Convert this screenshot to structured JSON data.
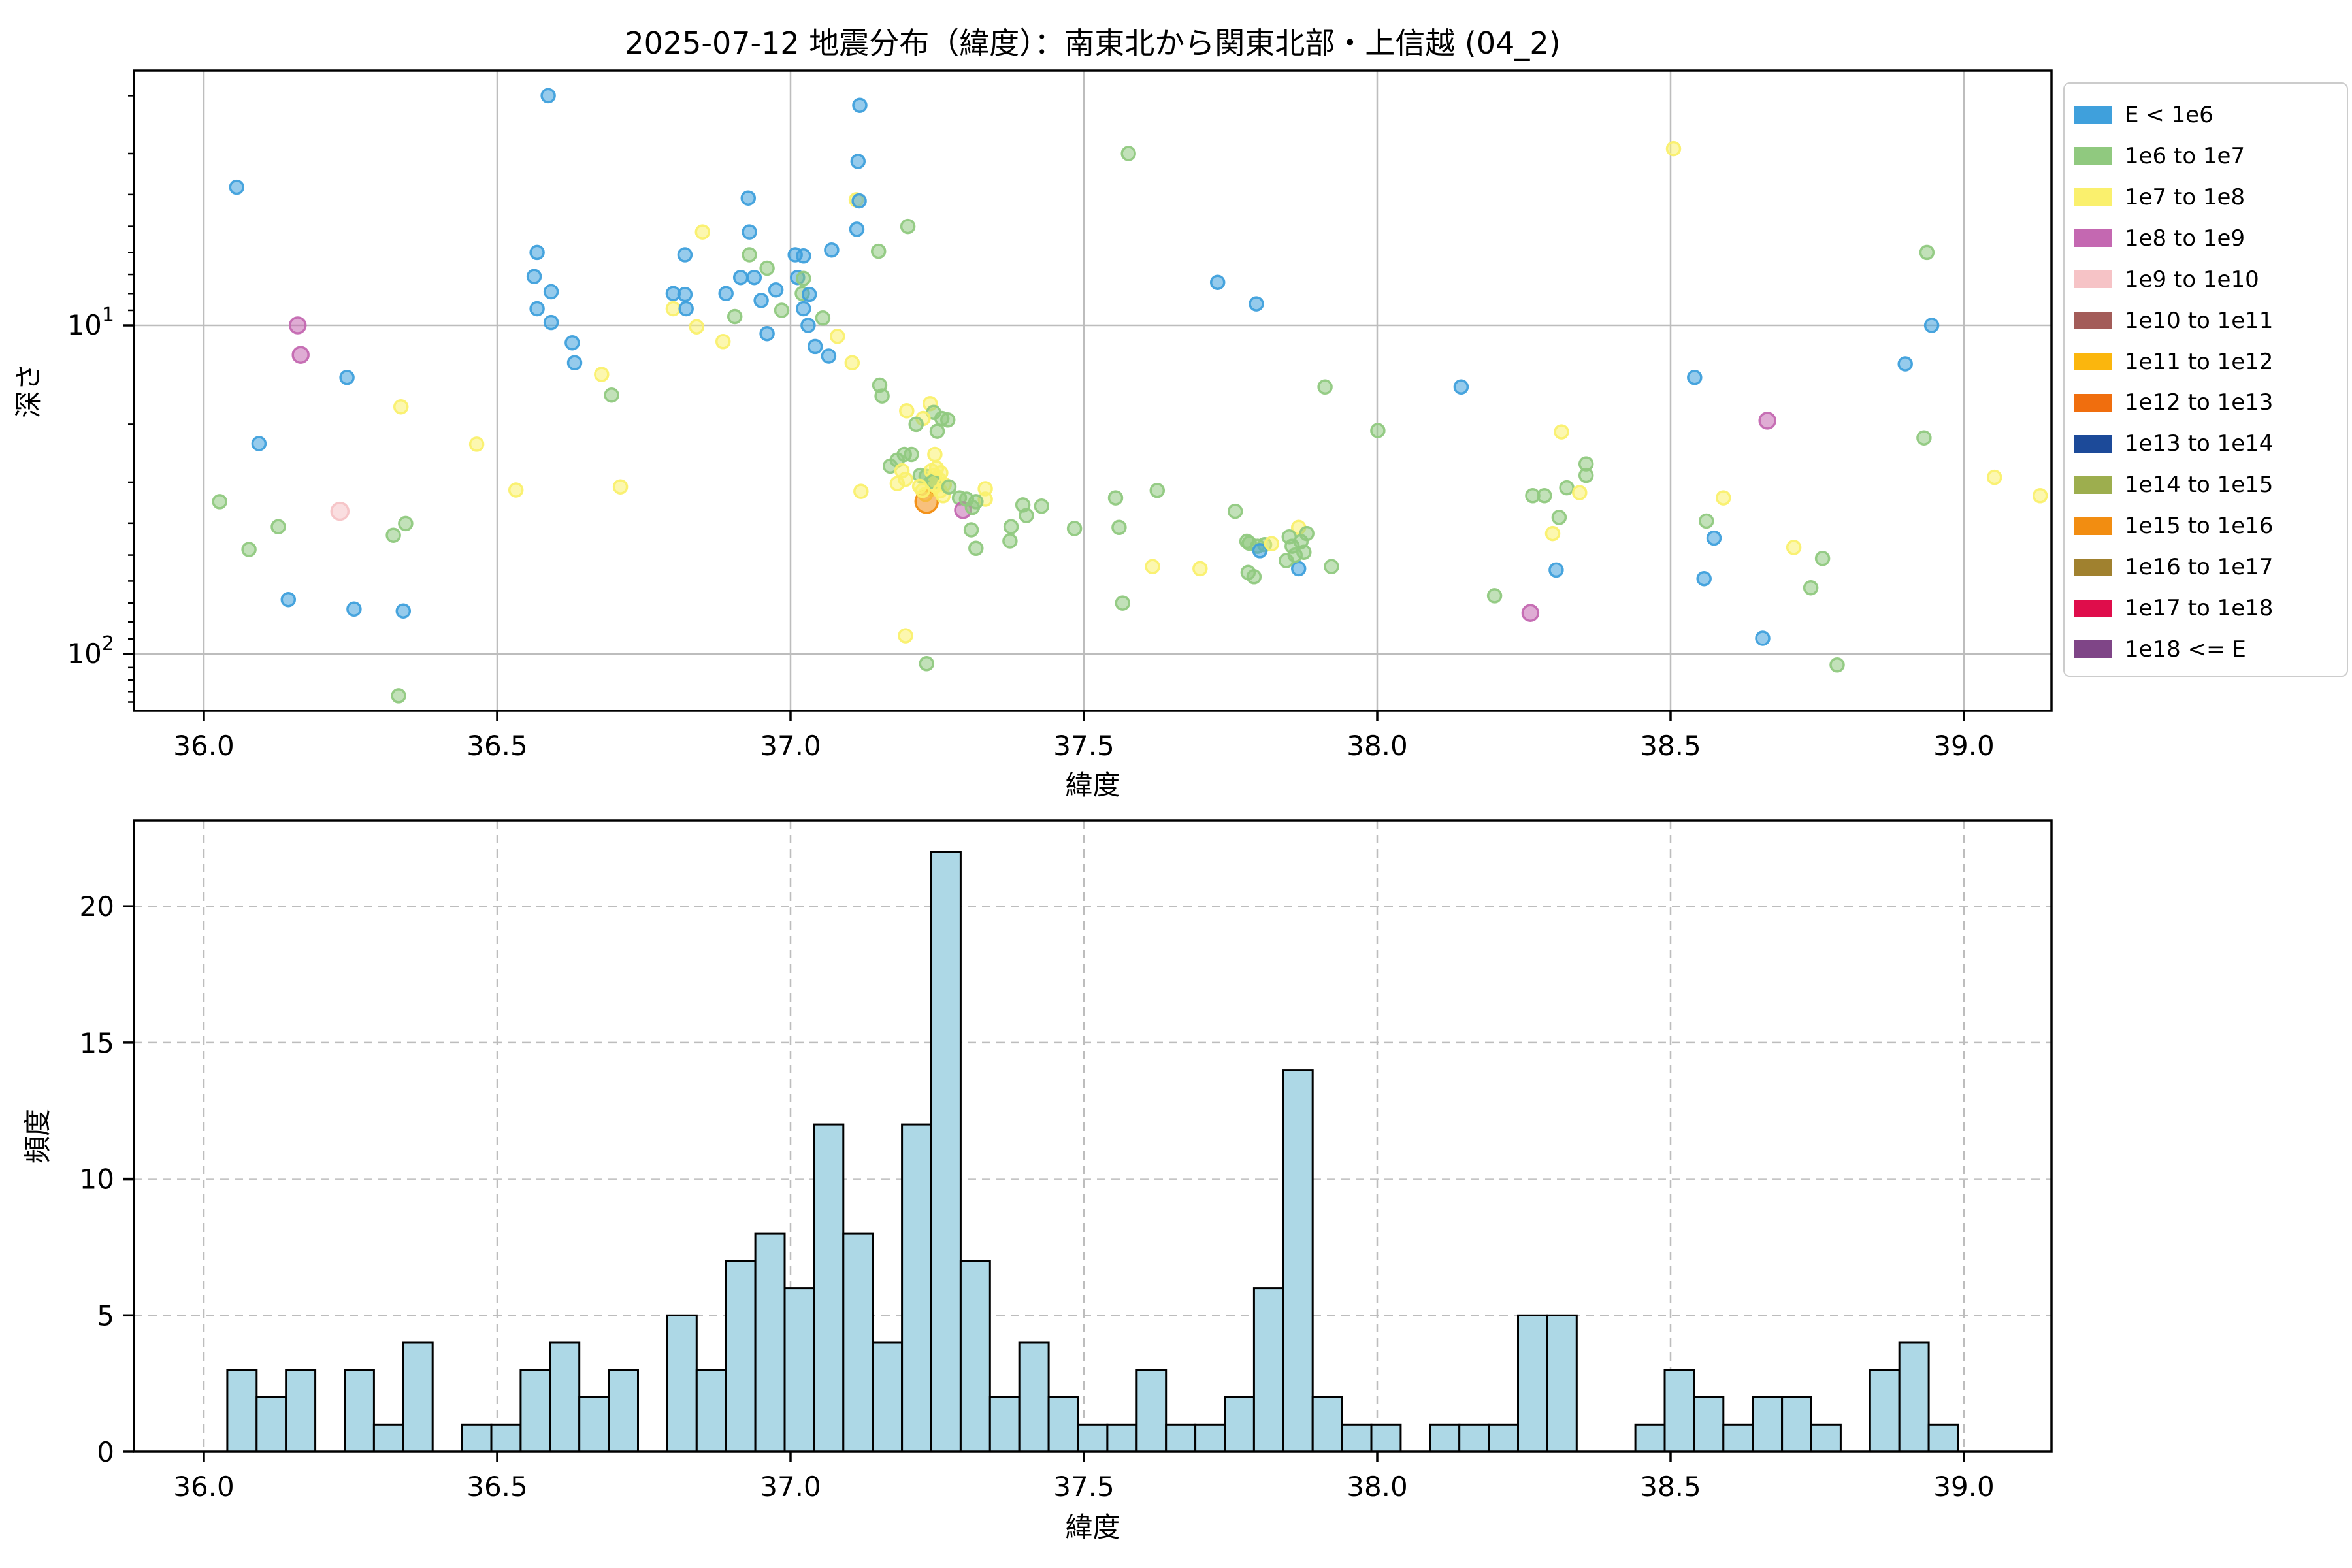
{
  "title": "2025-07-12 地震分布（緯度）：南東北から関東北部・上信越 (04_2)",
  "legend": {
    "entries": [
      {
        "label": "E < 1e6",
        "color": "#3FA0DC"
      },
      {
        "label": "1e6 to 1e7",
        "color": "#90C97F"
      },
      {
        "label": "1e7 to 1e8",
        "color": "#FAF06D"
      },
      {
        "label": "1e8 to 1e9",
        "color": "#C468B1"
      },
      {
        "label": "1e9 to 1e10",
        "color": "#F6C3C6"
      },
      {
        "label": "1e10 to 1e11",
        "color": "#A35C59"
      },
      {
        "label": "1e11 to 1e12",
        "color": "#FBB60D"
      },
      {
        "label": "1e12 to 1e13",
        "color": "#F06E0E"
      },
      {
        "label": "1e13 to 1e14",
        "color": "#1C4A99"
      },
      {
        "label": "1e14 to 1e15",
        "color": "#9DAE4E"
      },
      {
        "label": "1e15 to 1e16",
        "color": "#F28D11"
      },
      {
        "label": "1e16 to 1e17",
        "color": "#A0812F"
      },
      {
        "label": "1e17 to 1e18",
        "color": "#DF0D4B"
      },
      {
        "label": "1e18 <= E",
        "color": "#7F4587"
      }
    ]
  },
  "chart_data": [
    {
      "type": "scatter",
      "title": "",
      "xlabel": "緯度",
      "ylabel": "深さ",
      "x_ticks": [
        36.0,
        36.5,
        37.0,
        37.5,
        38.0,
        38.5,
        39.0
      ],
      "x_tick_labels": [
        "36.0",
        "36.5",
        "37.0",
        "37.5",
        "38.0",
        "38.5",
        "39.0"
      ],
      "xlim": [
        35.881,
        39.15
      ],
      "y_scale": "log-inverted",
      "ylim_depth": [
        1.66,
        148
      ],
      "y_major_ticks": [
        10,
        100
      ],
      "y_tick_labels": [
        {
          "base": "10",
          "exp": "1"
        },
        {
          "base": "10",
          "exp": "2"
        }
      ],
      "y_minor_ticks": [
        2,
        3,
        4,
        5,
        6,
        7,
        8,
        9,
        20,
        30,
        40,
        50,
        60,
        70,
        80,
        90,
        110,
        120,
        130,
        140
      ],
      "grid": "solid",
      "point_classes": {
        "b": {
          "label": "E < 1e6",
          "color": "#3FA0DC",
          "r": 10
        },
        "g": {
          "label": "1e6 to 1e7",
          "color": "#90C97F",
          "r": 10
        },
        "y": {
          "label": "1e7 to 1e8",
          "color": "#FAF06D",
          "r": 10
        },
        "m": {
          "label": "1e8 to 1e9",
          "color": "#C468B1",
          "r": 12
        },
        "p": {
          "label": "1e9 to 1e10",
          "color": "#F6C3C6",
          "r": 13
        },
        "o": {
          "label": "1e15 to 1e16",
          "color": "#F28D11",
          "r": 17
        }
      },
      "points": [
        [
          36.056,
          3.8,
          "b"
        ],
        [
          36.094,
          22.9,
          "b"
        ],
        [
          36.027,
          34.4,
          "g"
        ],
        [
          36.077,
          48.1,
          "g"
        ],
        [
          36.127,
          41.0,
          "g"
        ],
        [
          36.144,
          68.3,
          "b"
        ],
        [
          36.16,
          10.0,
          "m"
        ],
        [
          36.165,
          12.3,
          "m"
        ],
        [
          36.232,
          36.8,
          "p"
        ],
        [
          36.244,
          14.4,
          "b"
        ],
        [
          36.256,
          73.0,
          "b"
        ],
        [
          36.323,
          43.5,
          "g"
        ],
        [
          36.344,
          40.1,
          "g"
        ],
        [
          36.336,
          17.7,
          "y"
        ],
        [
          36.34,
          74.0,
          "b"
        ],
        [
          36.332,
          134,
          "g"
        ],
        [
          36.465,
          23.0,
          "y"
        ],
        [
          36.532,
          31.7,
          "y"
        ],
        [
          36.587,
          2.0,
          "b"
        ],
        [
          36.563,
          7.1,
          "b"
        ],
        [
          36.568,
          6.0,
          "b"
        ],
        [
          36.568,
          8.9,
          "b"
        ],
        [
          36.592,
          7.9,
          "b"
        ],
        [
          36.592,
          9.8,
          "b"
        ],
        [
          36.628,
          11.3,
          "b"
        ],
        [
          36.632,
          13.0,
          "b"
        ],
        [
          36.678,
          14.1,
          "y"
        ],
        [
          36.695,
          16.3,
          "g"
        ],
        [
          36.71,
          31.0,
          "y"
        ],
        [
          36.82,
          6.1,
          "b"
        ],
        [
          36.85,
          5.2,
          "y"
        ],
        [
          36.928,
          4.1,
          "b"
        ],
        [
          36.93,
          5.2,
          "b"
        ],
        [
          36.93,
          6.1,
          "g"
        ],
        [
          36.915,
          7.15,
          "b"
        ],
        [
          36.938,
          7.15,
          "b"
        ],
        [
          36.89,
          8.0,
          "b"
        ],
        [
          36.8,
          8.0,
          "b"
        ],
        [
          36.82,
          8.05,
          "b"
        ],
        [
          36.8,
          8.9,
          "y"
        ],
        [
          36.822,
          8.9,
          "b"
        ],
        [
          36.84,
          10.1,
          "y"
        ],
        [
          36.905,
          9.4,
          "g"
        ],
        [
          36.95,
          8.4,
          "b"
        ],
        [
          36.96,
          6.7,
          "g"
        ],
        [
          36.885,
          11.2,
          "y"
        ],
        [
          36.96,
          10.6,
          "b"
        ],
        [
          36.975,
          7.8,
          "b"
        ],
        [
          36.985,
          9.0,
          "g"
        ],
        [
          37.008,
          6.1,
          "b"
        ],
        [
          37.022,
          6.15,
          "b"
        ],
        [
          37.012,
          7.15,
          "b"
        ],
        [
          37.022,
          7.2,
          "g"
        ],
        [
          37.02,
          8.0,
          "g"
        ],
        [
          37.032,
          8.05,
          "b"
        ],
        [
          37.022,
          8.9,
          "b"
        ],
        [
          37.03,
          10.0,
          "b"
        ],
        [
          37.042,
          11.6,
          "b"
        ],
        [
          37.07,
          5.9,
          "b"
        ],
        [
          37.105,
          13.0,
          "y"
        ],
        [
          37.12,
          32,
          "y"
        ],
        [
          37.055,
          9.5,
          "g"
        ],
        [
          37.065,
          12.4,
          "b"
        ],
        [
          37.08,
          10.8,
          "y"
        ],
        [
          37.118,
          2.14,
          "b"
        ],
        [
          37.115,
          3.17,
          "b"
        ],
        [
          37.112,
          4.15,
          "y"
        ],
        [
          37.117,
          4.18,
          "b"
        ],
        [
          37.113,
          5.1,
          "b"
        ],
        [
          37.15,
          5.95,
          "g"
        ],
        [
          37.152,
          15.2,
          "g"
        ],
        [
          37.196,
          88,
          "y"
        ],
        [
          37.2,
          5.0,
          "g"
        ],
        [
          37.156,
          16.4,
          "g"
        ],
        [
          37.198,
          18.2,
          "y"
        ],
        [
          37.238,
          17.3,
          "y"
        ],
        [
          37.244,
          18.4,
          "g"
        ],
        [
          37.226,
          19.2,
          "y"
        ],
        [
          37.214,
          20.0,
          "g"
        ],
        [
          37.258,
          19.2,
          "g"
        ],
        [
          37.268,
          19.4,
          "g"
        ],
        [
          37.25,
          21.0,
          "g"
        ],
        [
          37.194,
          24.7,
          "g"
        ],
        [
          37.206,
          24.7,
          "g"
        ],
        [
          37.182,
          25.7,
          "g"
        ],
        [
          37.17,
          26.8,
          "g"
        ],
        [
          37.246,
          24.7,
          "y"
        ],
        [
          37.19,
          27.7,
          "y"
        ],
        [
          37.196,
          29.4,
          "y"
        ],
        [
          37.182,
          30.3,
          "y"
        ],
        [
          37.221,
          28.6,
          "g"
        ],
        [
          37.231,
          28.8,
          "g"
        ],
        [
          37.24,
          27.7,
          "y"
        ],
        [
          37.246,
          28.6,
          "y"
        ],
        [
          37.25,
          30.1,
          "y"
        ],
        [
          37.242,
          31.4,
          "y"
        ],
        [
          37.23,
          32.7,
          "y"
        ],
        [
          37.232,
          34.4,
          "o"
        ],
        [
          37.332,
          31.4,
          "y"
        ],
        [
          37.332,
          33.8,
          "y"
        ],
        [
          37.288,
          33.5,
          "g"
        ],
        [
          37.316,
          34.4,
          "g"
        ],
        [
          37.294,
          36.5,
          "m"
        ],
        [
          37.396,
          35.2,
          "g"
        ],
        [
          37.402,
          37.9,
          "g"
        ],
        [
          37.428,
          35.5,
          "g"
        ],
        [
          37.308,
          41.9,
          "g"
        ],
        [
          37.376,
          41.0,
          "g"
        ],
        [
          37.374,
          45.3,
          "g"
        ],
        [
          37.316,
          47.7,
          "g"
        ],
        [
          37.484,
          41.5,
          "g"
        ],
        [
          37.554,
          33.5,
          "g"
        ],
        [
          37.252,
          29.3,
          "y"
        ],
        [
          37.247,
          30.8,
          "y"
        ],
        [
          37.256,
          28.1,
          "y"
        ],
        [
          37.243,
          29.9,
          "g"
        ],
        [
          37.262,
          30.5,
          "y"
        ],
        [
          37.249,
          27.2,
          "y"
        ],
        [
          37.255,
          31.9,
          "y"
        ],
        [
          37.26,
          33.0,
          "y"
        ],
        [
          37.27,
          31.0,
          "g"
        ],
        [
          37.22,
          30.9,
          "y"
        ],
        [
          37.225,
          31.8,
          "y"
        ],
        [
          37.3,
          33.8,
          "g"
        ],
        [
          37.31,
          35.8,
          "g"
        ],
        [
          37.232,
          107,
          "g"
        ],
        [
          37.576,
          3.0,
          "g"
        ],
        [
          37.728,
          7.4,
          "b"
        ],
        [
          37.794,
          8.6,
          "b"
        ],
        [
          37.911,
          15.4,
          "g"
        ],
        [
          38.143,
          15.4,
          "b"
        ],
        [
          37.625,
          31.8,
          "g"
        ],
        [
          37.56,
          41.2,
          "g"
        ],
        [
          37.758,
          36.8,
          "g"
        ],
        [
          37.778,
          45.4,
          "g"
        ],
        [
          37.866,
          41.2,
          "y"
        ],
        [
          37.782,
          46.0,
          "g"
        ],
        [
          37.796,
          47.0,
          "g"
        ],
        [
          37.808,
          46.5,
          "g"
        ],
        [
          37.8,
          48.5,
          "b"
        ],
        [
          37.82,
          46.2,
          "y"
        ],
        [
          37.866,
          55.0,
          "b"
        ],
        [
          37.922,
          54.2,
          "g"
        ],
        [
          37.78,
          56.5,
          "g"
        ],
        [
          37.79,
          58.2,
          "g"
        ],
        [
          37.617,
          54.2,
          "y"
        ],
        [
          37.698,
          55.0,
          "y"
        ],
        [
          37.566,
          70.0,
          "g"
        ],
        [
          38.001,
          20.9,
          "g"
        ],
        [
          37.85,
          44.0,
          "g"
        ],
        [
          37.855,
          47.0,
          "g"
        ],
        [
          37.86,
          50.0,
          "g"
        ],
        [
          37.845,
          52.0,
          "g"
        ],
        [
          37.87,
          45.5,
          "g"
        ],
        [
          37.875,
          49.0,
          "g"
        ],
        [
          37.88,
          43.0,
          "g"
        ],
        [
          38.314,
          21.1,
          "y"
        ],
        [
          38.356,
          26.4,
          "g"
        ],
        [
          38.356,
          28.6,
          "g"
        ],
        [
          38.323,
          31.2,
          "g"
        ],
        [
          38.345,
          32.3,
          "y"
        ],
        [
          38.265,
          33.0,
          "g"
        ],
        [
          38.285,
          33.0,
          "g"
        ],
        [
          38.31,
          38.4,
          "g"
        ],
        [
          38.299,
          43.0,
          "y"
        ],
        [
          38.305,
          55.5,
          "b"
        ],
        [
          38.2,
          66.5,
          "g"
        ],
        [
          38.261,
          75.0,
          "m"
        ],
        [
          38.505,
          2.9,
          "y"
        ],
        [
          38.937,
          6.0,
          "g"
        ],
        [
          38.945,
          10.0,
          "b"
        ],
        [
          38.9,
          13.1,
          "b"
        ],
        [
          38.541,
          14.4,
          "b"
        ],
        [
          38.665,
          19.5,
          "m"
        ],
        [
          38.932,
          22.0,
          "g"
        ],
        [
          38.59,
          33.5,
          "y"
        ],
        [
          38.561,
          39.4,
          "g"
        ],
        [
          38.574,
          44.4,
          "b"
        ],
        [
          38.557,
          59.0,
          "b"
        ],
        [
          38.71,
          47.4,
          "y"
        ],
        [
          38.759,
          51.2,
          "g"
        ],
        [
          38.739,
          62.9,
          "g"
        ],
        [
          38.657,
          89.6,
          "b"
        ],
        [
          38.784,
          108,
          "g"
        ],
        [
          39.052,
          29.0,
          "y"
        ],
        [
          39.13,
          33.0,
          "y"
        ]
      ]
    },
    {
      "type": "bar",
      "title": "",
      "xlabel": "緯度",
      "ylabel": "頻度",
      "x_ticks": [
        36.0,
        36.5,
        37.0,
        37.5,
        38.0,
        38.5,
        39.0
      ],
      "x_tick_labels": [
        "36.0",
        "36.5",
        "37.0",
        "37.5",
        "38.0",
        "38.5",
        "39.0"
      ],
      "y_ticks": [
        0,
        5,
        10,
        15,
        20
      ],
      "y_tick_labels": [
        "0",
        "5",
        "10",
        "15",
        "20"
      ],
      "ylim": [
        0,
        23.1
      ],
      "grid": "dashed",
      "bar_color": "#ADD8E6",
      "bar_edge_color": "#000000",
      "bin_start": 36.04,
      "bin_width": 0.05,
      "counts": [
        3,
        2,
        3,
        0,
        3,
        1,
        4,
        0,
        1,
        1,
        3,
        4,
        2,
        3,
        0,
        5,
        3,
        7,
        8,
        6,
        12,
        8,
        4,
        12,
        22,
        7,
        2,
        4,
        2,
        1,
        1,
        3,
        1,
        1,
        2,
        6,
        14,
        2,
        1,
        1,
        0,
        1,
        1,
        1,
        5,
        5,
        0,
        0,
        1,
        3,
        2,
        1,
        2,
        2,
        1,
        0,
        3,
        4,
        1
      ]
    }
  ]
}
